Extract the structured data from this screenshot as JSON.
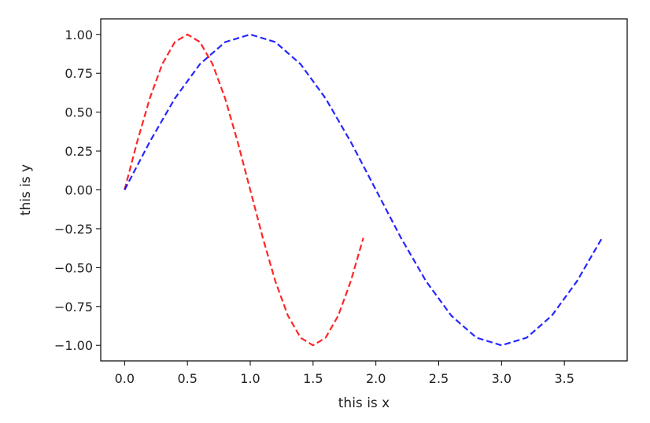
{
  "chart_data": {
    "type": "line",
    "title": "",
    "xlabel": "this is x",
    "ylabel": "this is y",
    "xlim": [
      -0.19,
      4.0
    ],
    "ylim": [
      -1.1,
      1.1
    ],
    "xticks": [
      0.0,
      0.5,
      1.0,
      1.5,
      2.0,
      2.5,
      3.0,
      3.5
    ],
    "xtick_labels": [
      "0.0",
      "0.5",
      "1.0",
      "1.5",
      "2.0",
      "2.5",
      "3.0",
      "3.5"
    ],
    "yticks": [
      1.0,
      0.75,
      0.5,
      0.25,
      0.0,
      -0.25,
      -0.5,
      -0.75,
      -1.0
    ],
    "ytick_labels": [
      "1.00",
      "0.75",
      "0.50",
      "0.25",
      "0.00",
      "−0.25",
      "−0.50",
      "−0.75",
      "−1.00"
    ],
    "grid": false,
    "legend": false,
    "series": [
      {
        "color": "#ff0000",
        "linestyle": "dashed",
        "x": [
          0.0,
          0.1,
          0.2,
          0.3,
          0.4,
          0.5,
          0.6,
          0.7,
          0.8,
          0.9,
          1.0,
          1.1,
          1.2,
          1.3,
          1.4,
          1.5,
          1.6,
          1.7,
          1.8,
          1.9
        ],
        "y": [
          0.0,
          0.309,
          0.588,
          0.809,
          0.951,
          1.0,
          0.951,
          0.809,
          0.588,
          0.309,
          0.0,
          -0.309,
          -0.588,
          -0.809,
          -0.951,
          -1.0,
          -0.951,
          -0.809,
          -0.588,
          -0.309
        ]
      },
      {
        "color": "#0000ff",
        "linestyle": "dashed",
        "x": [
          0.0,
          0.2,
          0.4,
          0.6,
          0.8,
          1.0,
          1.2,
          1.4,
          1.6,
          1.8,
          2.0,
          2.2,
          2.4,
          2.6,
          2.8,
          3.0,
          3.2,
          3.4,
          3.6,
          3.8
        ],
        "y": [
          0.0,
          0.309,
          0.588,
          0.809,
          0.951,
          1.0,
          0.951,
          0.809,
          0.588,
          0.309,
          0.0,
          -0.309,
          -0.588,
          -0.809,
          -0.951,
          -1.0,
          -0.951,
          -0.809,
          -0.588,
          -0.309
        ]
      }
    ]
  }
}
